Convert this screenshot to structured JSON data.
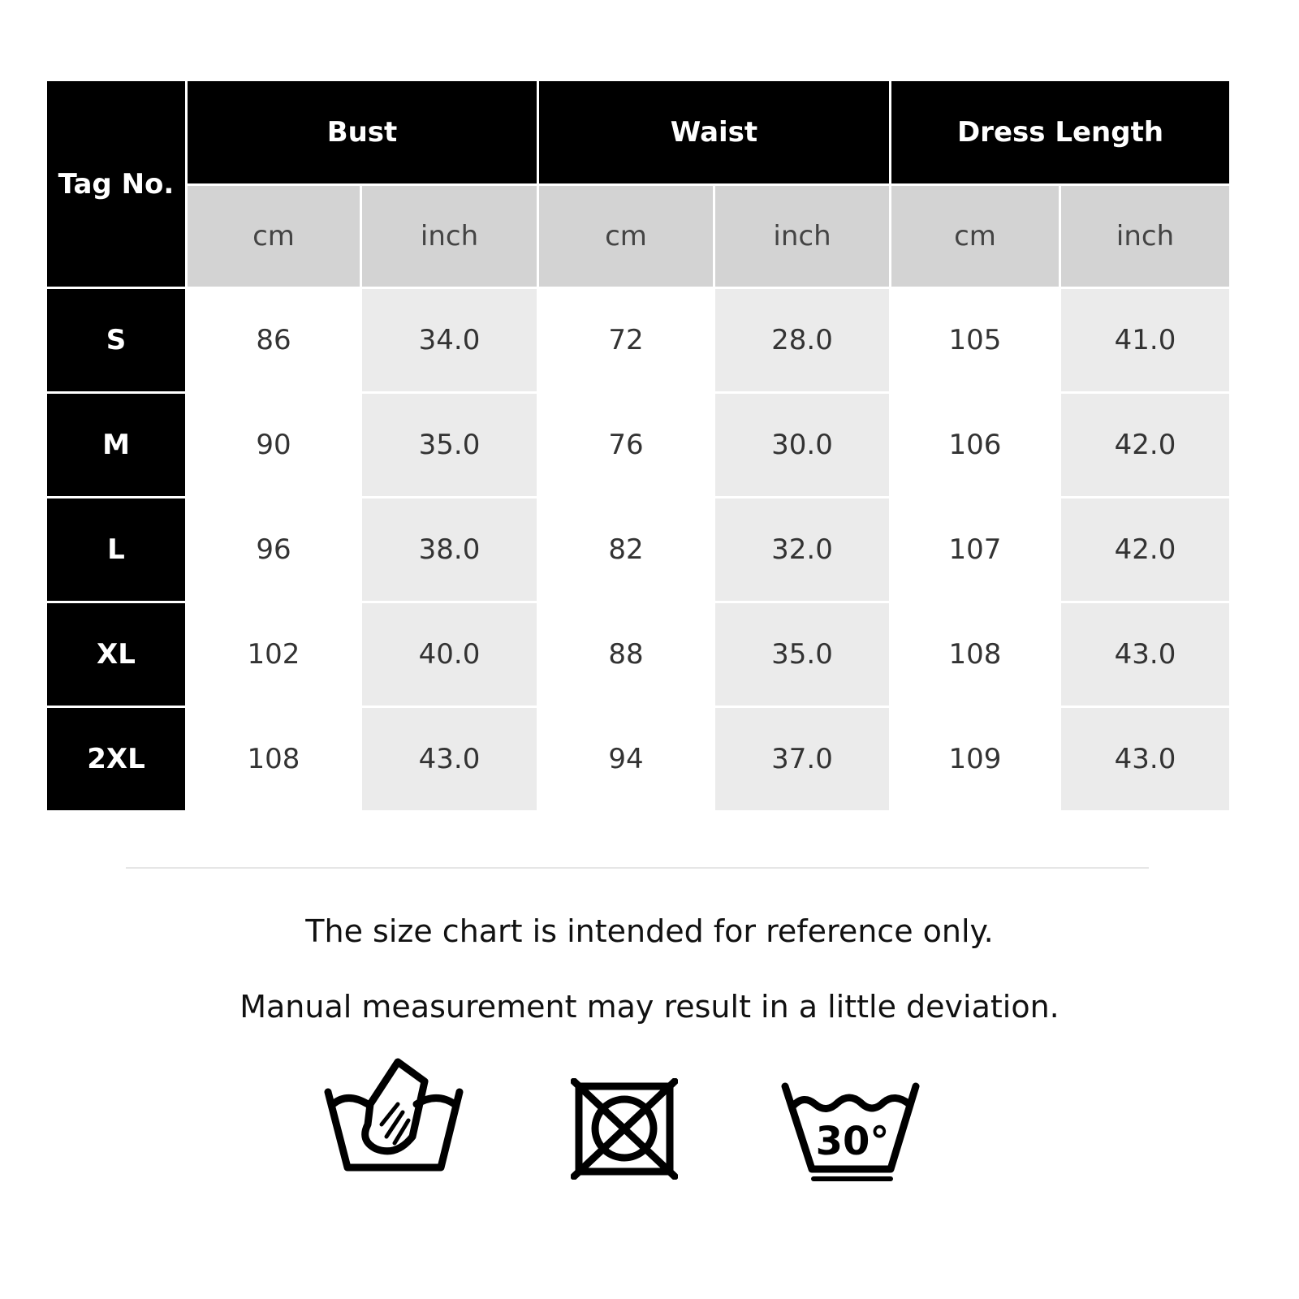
{
  "table": {
    "tag_header": "Tag No.",
    "groups": [
      "Bust",
      "Waist",
      "Dress Length"
    ],
    "units": [
      "cm",
      "inch",
      "cm",
      "inch",
      "cm",
      "inch"
    ],
    "rows": [
      {
        "size": "S",
        "values": [
          "86",
          "34.0",
          "72",
          "28.0",
          "105",
          "41.0"
        ]
      },
      {
        "size": "M",
        "values": [
          "90",
          "35.0",
          "76",
          "30.0",
          "106",
          "42.0"
        ]
      },
      {
        "size": "L",
        "values": [
          "96",
          "38.0",
          "82",
          "32.0",
          "107",
          "42.0"
        ]
      },
      {
        "size": "XL",
        "values": [
          "102",
          "40.0",
          "88",
          "35.0",
          "108",
          "43.0"
        ]
      },
      {
        "size": "2XL",
        "values": [
          "108",
          "43.0",
          "94",
          "37.0",
          "109",
          "43.0"
        ]
      }
    ]
  },
  "notes": [
    "The size chart is intended for reference only.",
    "Manual measurement may result in a little deviation."
  ],
  "care_icons": [
    "hand-wash-icon",
    "do-not-tumble-dry-icon",
    "wash-30-degrees-icon"
  ],
  "wash_temperature": "30°"
}
